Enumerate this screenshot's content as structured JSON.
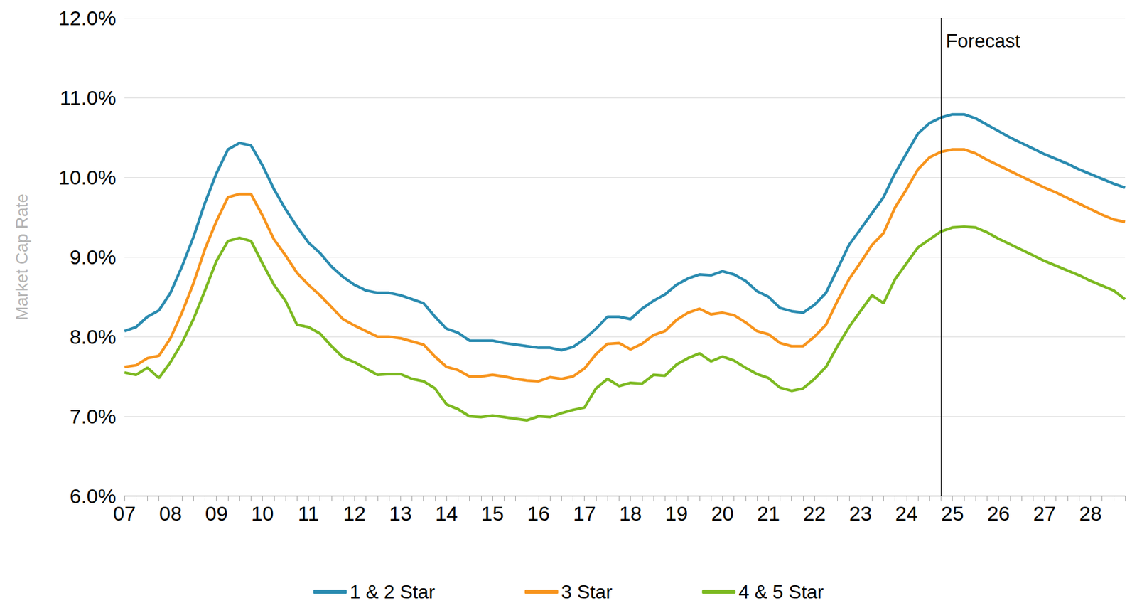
{
  "chart_data": {
    "type": "line",
    "y_label": "Market Cap Rate",
    "categories": [
      "07",
      null,
      null,
      null,
      "08",
      null,
      null,
      null,
      "09",
      null,
      null,
      null,
      "10",
      null,
      null,
      null,
      "11",
      null,
      null,
      null,
      "12",
      null,
      null,
      null,
      "13",
      null,
      null,
      null,
      "14",
      null,
      null,
      null,
      "15",
      null,
      null,
      null,
      "16",
      null,
      null,
      null,
      "17",
      null,
      null,
      null,
      "18",
      null,
      null,
      null,
      "19",
      null,
      null,
      null,
      "20",
      null,
      null,
      null,
      "21",
      null,
      null,
      null,
      "22",
      null,
      null,
      null,
      "23",
      null,
      null,
      null,
      "24",
      null,
      null,
      null,
      "25",
      null,
      null,
      null,
      "26",
      null,
      null,
      null,
      "27",
      null,
      null,
      null,
      "28",
      null,
      null,
      null
    ],
    "series": [
      {
        "name": "1 & 2 Star",
        "color": "#2a8bb0",
        "values": [
          8.07,
          8.12,
          8.25,
          8.33,
          8.55,
          8.88,
          9.25,
          9.68,
          10.05,
          10.35,
          10.43,
          10.4,
          10.15,
          9.85,
          9.6,
          9.38,
          9.18,
          9.05,
          8.88,
          8.75,
          8.65,
          8.58,
          8.55,
          8.55,
          8.52,
          8.47,
          8.42,
          8.25,
          8.1,
          8.05,
          7.95,
          7.95,
          7.95,
          7.92,
          7.9,
          7.88,
          7.86,
          7.86,
          7.83,
          7.87,
          7.97,
          8.1,
          8.25,
          8.25,
          8.22,
          8.35,
          8.45,
          8.53,
          8.65,
          8.73,
          8.78,
          8.77,
          8.82,
          8.78,
          8.7,
          8.57,
          8.5,
          8.36,
          8.32,
          8.3,
          8.4,
          8.55,
          8.85,
          9.15,
          9.35,
          9.55,
          9.75,
          10.05,
          10.3,
          10.55,
          10.68,
          10.75,
          10.79,
          10.79,
          10.74,
          10.66,
          10.58,
          10.5,
          10.43,
          10.36,
          10.29,
          10.23,
          10.17,
          10.1,
          10.04,
          9.98,
          9.92,
          9.87
        ]
      },
      {
        "name": "3 Star",
        "color": "#f7941d",
        "values": [
          7.62,
          7.64,
          7.73,
          7.76,
          7.98,
          8.3,
          8.67,
          9.1,
          9.45,
          9.75,
          9.79,
          9.79,
          9.52,
          9.22,
          9.02,
          8.8,
          8.65,
          8.52,
          8.37,
          8.22,
          8.14,
          8.07,
          8.0,
          8.0,
          7.98,
          7.94,
          7.9,
          7.75,
          7.62,
          7.58,
          7.5,
          7.5,
          7.52,
          7.5,
          7.47,
          7.45,
          7.44,
          7.49,
          7.47,
          7.5,
          7.6,
          7.78,
          7.91,
          7.92,
          7.84,
          7.91,
          8.02,
          8.07,
          8.21,
          8.3,
          8.35,
          8.28,
          8.3,
          8.27,
          8.18,
          8.07,
          8.03,
          7.92,
          7.88,
          7.88,
          8.0,
          8.15,
          8.45,
          8.72,
          8.93,
          9.15,
          9.3,
          9.62,
          9.85,
          10.1,
          10.25,
          10.32,
          10.35,
          10.35,
          10.3,
          10.22,
          10.15,
          10.08,
          10.01,
          9.94,
          9.87,
          9.81,
          9.74,
          9.67,
          9.6,
          9.53,
          9.47,
          9.44
        ]
      },
      {
        "name": "4 & 5 Star",
        "color": "#7cb921",
        "values": [
          7.55,
          7.52,
          7.61,
          7.48,
          7.68,
          7.92,
          8.22,
          8.58,
          8.95,
          9.2,
          9.24,
          9.2,
          8.92,
          8.65,
          8.45,
          8.15,
          8.12,
          8.04,
          7.88,
          7.74,
          7.68,
          7.6,
          7.52,
          7.53,
          7.53,
          7.47,
          7.44,
          7.35,
          7.15,
          7.09,
          7.0,
          6.99,
          7.01,
          6.99,
          6.97,
          6.95,
          7.0,
          6.99,
          7.04,
          7.08,
          7.11,
          7.35,
          7.47,
          7.38,
          7.42,
          7.41,
          7.52,
          7.51,
          7.65,
          7.73,
          7.79,
          7.69,
          7.75,
          7.7,
          7.61,
          7.53,
          7.48,
          7.36,
          7.32,
          7.35,
          7.47,
          7.62,
          7.88,
          8.12,
          8.32,
          8.52,
          8.42,
          8.72,
          8.92,
          9.12,
          9.22,
          9.32,
          9.37,
          9.38,
          9.37,
          9.31,
          9.23,
          9.16,
          9.09,
          9.02,
          8.95,
          8.89,
          8.83,
          8.77,
          8.7,
          8.64,
          8.58,
          8.47
        ]
      }
    ],
    "ylim": [
      6,
      12
    ],
    "yticks": [
      {
        "value": 6,
        "label": "6.0%"
      },
      {
        "value": 7,
        "label": "7.0%"
      },
      {
        "value": 8,
        "label": "8.0%"
      },
      {
        "value": 9,
        "label": "9.0%"
      },
      {
        "value": 10,
        "label": "10.0%"
      },
      {
        "value": 11,
        "label": "11.0%"
      },
      {
        "value": 12,
        "label": "12.0%"
      }
    ],
    "grid": true,
    "legend": "bottom",
    "forecast": {
      "text": "Forecast",
      "position": 71
    }
  }
}
